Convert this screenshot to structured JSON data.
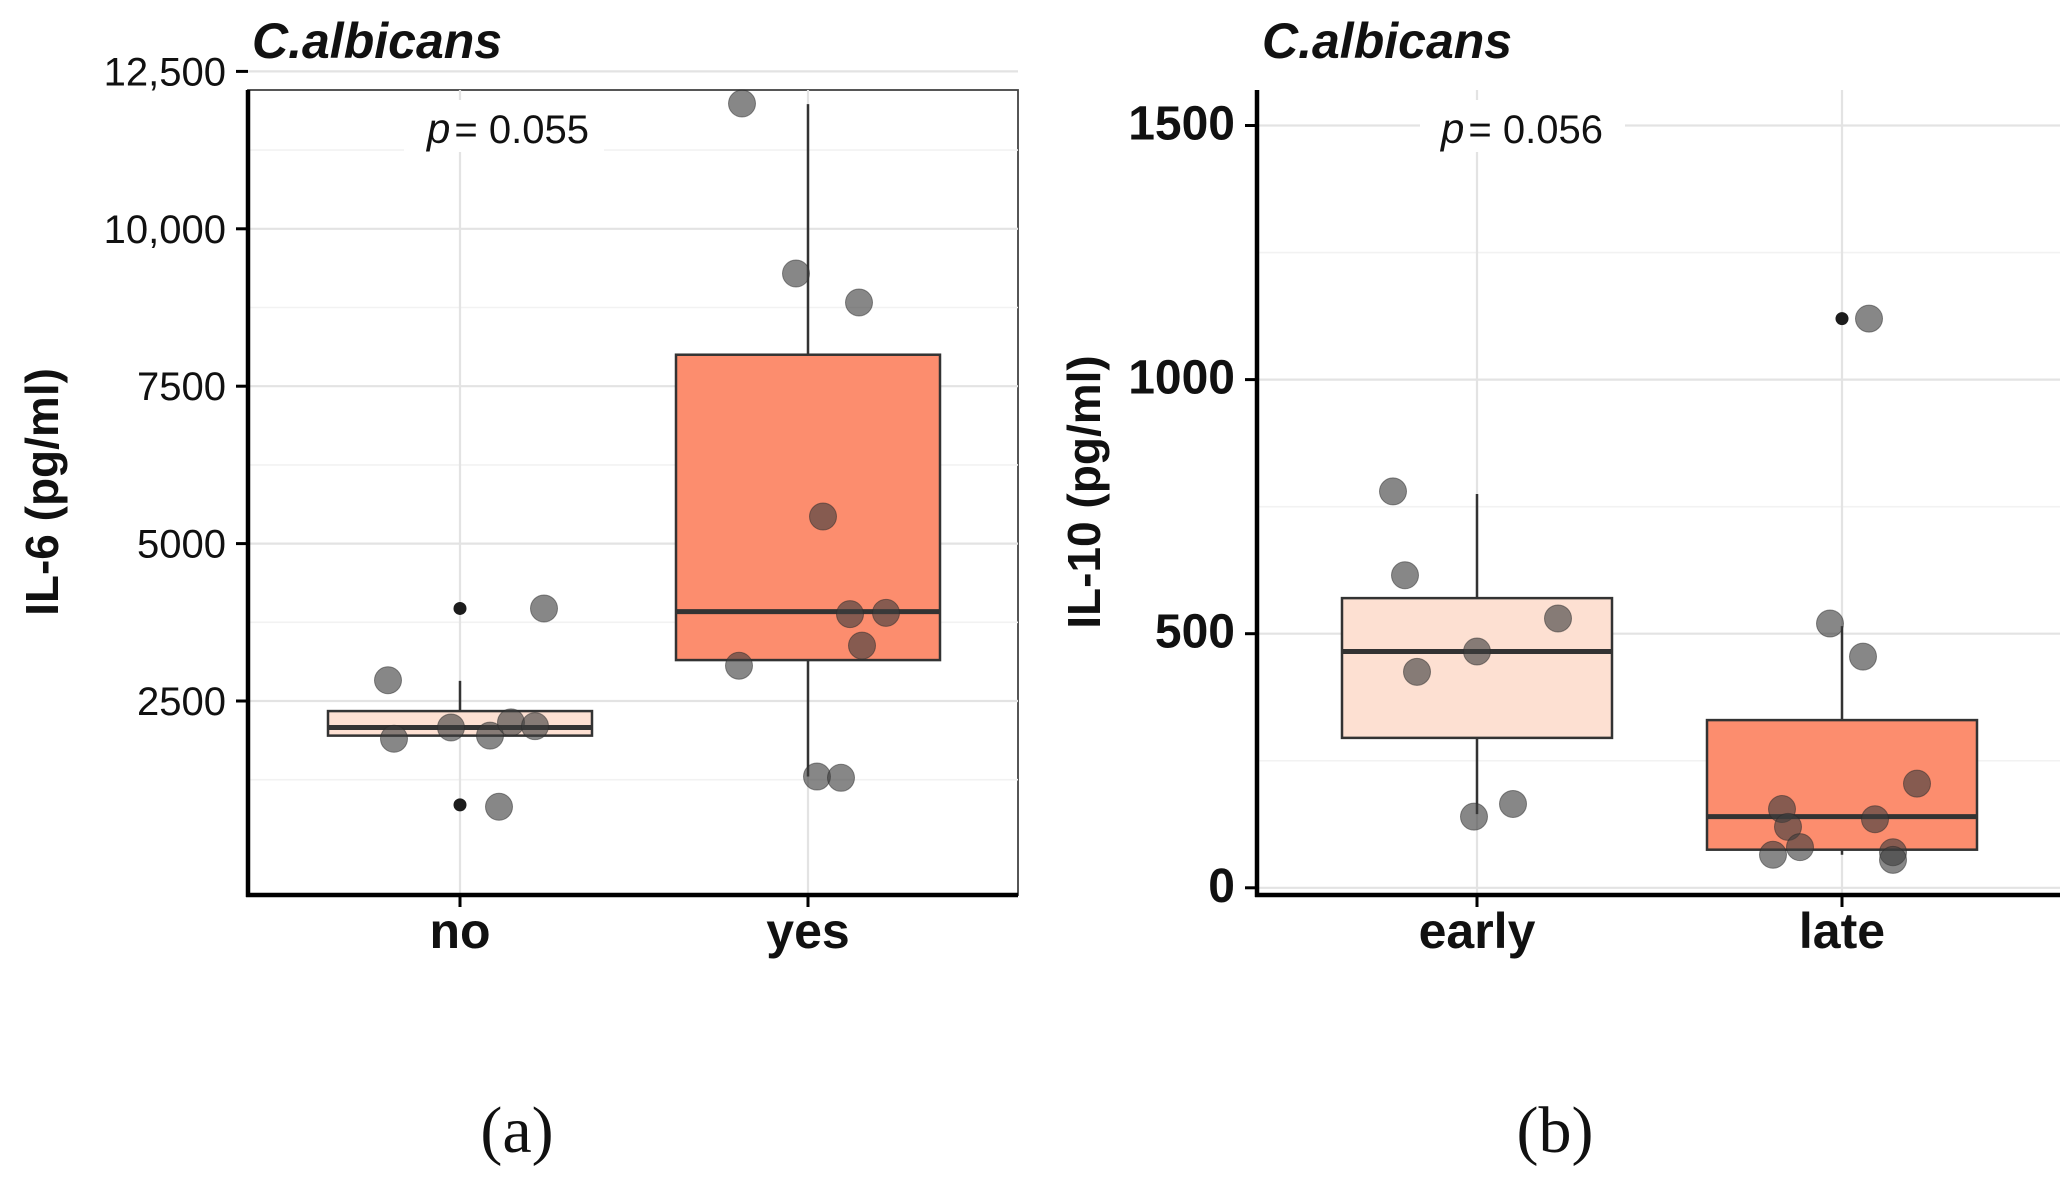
{
  "chart_data": [
    {
      "type": "box",
      "title": "C.albicans",
      "ylabel": "IL-6 (pg/ml)",
      "xlabel": "",
      "categories": [
        "no",
        "yes"
      ],
      "ylim": [
        0,
        13000
      ],
      "yticks": [
        2500,
        5000,
        7500,
        10000,
        12500
      ],
      "ytick_labels": [
        "2500",
        "5000",
        "7500",
        "10,000",
        "12,500"
      ],
      "grid": true,
      "annotation": {
        "p_symbol": "p",
        "p_value_text": "= 0.055"
      },
      "subfigure_label": "(a)",
      "boxes": [
        {
          "category": "no",
          "q1": 1950,
          "median": 2080,
          "q3": 2340,
          "whisker_low": 1950,
          "whisker_high": 2820,
          "fill": "#fde0d2",
          "outliers": [
            3970,
            850
          ],
          "points": [
            [
              -0.24,
              2830
            ],
            [
              -0.22,
              1900
            ],
            [
              -0.03,
              2080
            ],
            [
              0.1,
              1950
            ],
            [
              0.17,
              2160
            ],
            [
              0.25,
              2100
            ],
            [
              0.13,
              820
            ],
            [
              0.28,
              3970
            ]
          ]
        },
        {
          "category": "yes",
          "q1": 3150,
          "median": 3920,
          "q3": 8000,
          "whisker_low": 1300,
          "whisker_high": 11980,
          "fill": "#fc8d6e",
          "outliers": [],
          "points": [
            [
              -0.22,
              11990
            ],
            [
              -0.04,
              9290
            ],
            [
              0.17,
              8830
            ],
            [
              0.05,
              5430
            ],
            [
              0.14,
              3880
            ],
            [
              0.26,
              3900
            ],
            [
              0.18,
              3380
            ],
            [
              -0.23,
              3060
            ],
            [
              0.03,
              1300
            ],
            [
              0.11,
              1280
            ]
          ]
        }
      ]
    },
    {
      "type": "box",
      "title": "C.albicans",
      "ylabel": "IL-10 (pg/ml)",
      "xlabel": "",
      "categories": [
        "early",
        "late"
      ],
      "ylim": [
        -20,
        1580
      ],
      "yticks": [
        0,
        500,
        1000,
        1500
      ],
      "ytick_labels": [
        "0",
        "500",
        "1000",
        "1500"
      ],
      "grid": true,
      "annotation": {
        "p_symbol": "p",
        "p_value_text": "= 0.056"
      },
      "subfigure_label": "(b)",
      "boxes": [
        {
          "category": "early",
          "q1": 295,
          "median": 465,
          "q3": 570,
          "whisker_low": 145,
          "whisker_high": 775,
          "fill": "#fde0d2",
          "outliers": [],
          "points": [
            [
              -0.28,
              780
            ],
            [
              -0.24,
              615
            ],
            [
              -0.2,
              425
            ],
            [
              0.0,
              465
            ],
            [
              0.27,
              530
            ],
            [
              -0.01,
              140
            ],
            [
              0.12,
              165
            ]
          ]
        },
        {
          "category": "late",
          "q1": 75,
          "median": 140,
          "q3": 330,
          "whisker_low": 65,
          "whisker_high": 515,
          "fill": "#fc8d6e",
          "outliers": [
            1120
          ],
          "points": [
            [
              0.09,
              1120
            ],
            [
              -0.04,
              520
            ],
            [
              0.07,
              455
            ],
            [
              0.25,
              205
            ],
            [
              -0.2,
              155
            ],
            [
              -0.18,
              120
            ],
            [
              0.11,
              135
            ],
            [
              -0.23,
              65
            ],
            [
              -0.14,
              80
            ],
            [
              0.17,
              70
            ],
            [
              0.17,
              55
            ]
          ]
        }
      ]
    }
  ]
}
